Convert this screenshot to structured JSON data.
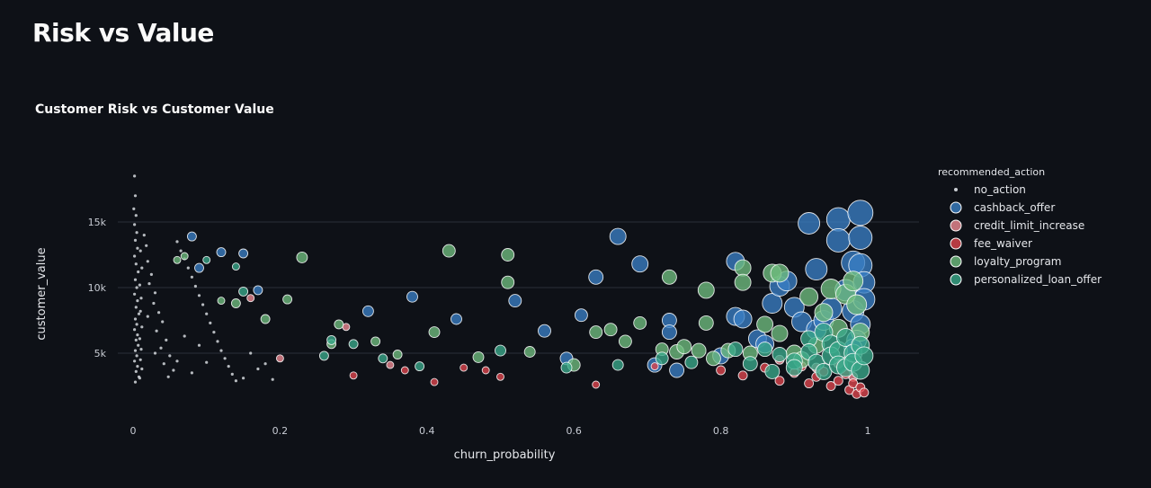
{
  "page": {
    "title": "Risk vs Value"
  },
  "chart_data": {
    "type": "scatter",
    "title": "Customer Risk vs Customer Value",
    "xlabel": "churn_probability",
    "ylabel": "customer_value",
    "xlim": [
      -0.02,
      1.02
    ],
    "ylim": [
      0,
      19000
    ],
    "x_ticks": [
      0,
      0.2,
      0.4,
      0.6,
      0.8,
      1
    ],
    "x_tick_labels": [
      "0",
      "0.2",
      "0.4",
      "0.6",
      "0.8",
      "1"
    ],
    "y_ticks": [
      5000,
      10000,
      15000
    ],
    "y_tick_labels": [
      "5k",
      "10k",
      "15k"
    ],
    "grid": true,
    "legend": {
      "title": "recommended_action",
      "position": "right"
    },
    "series": [
      {
        "name": "no_action",
        "color": "#c9cdd2",
        "points": [
          [
            0.002,
            18500
          ],
          [
            0.003,
            17000
          ],
          [
            0.001,
            16000
          ],
          [
            0.004,
            15500
          ],
          [
            0.002,
            14800
          ],
          [
            0.005,
            14200
          ],
          [
            0.003,
            13600
          ],
          [
            0.006,
            13000
          ],
          [
            0.002,
            12400
          ],
          [
            0.004,
            11800
          ],
          [
            0.007,
            11200
          ],
          [
            0.003,
            10600
          ],
          [
            0.005,
            10000
          ],
          [
            0.002,
            9500
          ],
          [
            0.006,
            9000
          ],
          [
            0.004,
            8500
          ],
          [
            0.008,
            8000
          ],
          [
            0.003,
            7600
          ],
          [
            0.005,
            7200
          ],
          [
            0.002,
            6800
          ],
          [
            0.006,
            6400
          ],
          [
            0.004,
            6000
          ],
          [
            0.007,
            5600
          ],
          [
            0.003,
            5200
          ],
          [
            0.005,
            4800
          ],
          [
            0.002,
            4400
          ],
          [
            0.006,
            4000
          ],
          [
            0.004,
            3600
          ],
          [
            0.008,
            3200
          ],
          [
            0.003,
            2800
          ],
          [
            0.01,
            12800
          ],
          [
            0.012,
            11500
          ],
          [
            0.009,
            10200
          ],
          [
            0.011,
            9200
          ],
          [
            0.01,
            8200
          ],
          [
            0.012,
            7000
          ],
          [
            0.009,
            6100
          ],
          [
            0.011,
            5300
          ],
          [
            0.01,
            4500
          ],
          [
            0.012,
            3800
          ],
          [
            0.009,
            3100
          ],
          [
            0.015,
            14000
          ],
          [
            0.018,
            13200
          ],
          [
            0.02,
            12000
          ],
          [
            0.025,
            11000
          ],
          [
            0.022,
            10300
          ],
          [
            0.03,
            9600
          ],
          [
            0.028,
            8800
          ],
          [
            0.035,
            8100
          ],
          [
            0.04,
            7400
          ],
          [
            0.032,
            6700
          ],
          [
            0.045,
            6000
          ],
          [
            0.038,
            5400
          ],
          [
            0.05,
            4800
          ],
          [
            0.042,
            4200
          ],
          [
            0.055,
            3700
          ],
          [
            0.048,
            3200
          ],
          [
            0.06,
            13500
          ],
          [
            0.065,
            12800
          ],
          [
            0.07,
            12200
          ],
          [
            0.075,
            11500
          ],
          [
            0.08,
            10800
          ],
          [
            0.085,
            10100
          ],
          [
            0.09,
            9400
          ],
          [
            0.095,
            8700
          ],
          [
            0.1,
            8000
          ],
          [
            0.105,
            7300
          ],
          [
            0.11,
            6600
          ],
          [
            0.115,
            5900
          ],
          [
            0.12,
            5200
          ],
          [
            0.125,
            4600
          ],
          [
            0.13,
            4000
          ],
          [
            0.135,
            3400
          ],
          [
            0.14,
            2900
          ],
          [
            0.02,
            7800
          ],
          [
            0.03,
            5000
          ],
          [
            0.06,
            4400
          ],
          [
            0.07,
            6300
          ],
          [
            0.08,
            3500
          ],
          [
            0.09,
            5600
          ],
          [
            0.1,
            4300
          ],
          [
            0.15,
            3100
          ],
          [
            0.16,
            5000
          ],
          [
            0.17,
            3800
          ],
          [
            0.18,
            4200
          ],
          [
            0.19,
            3000
          ]
        ]
      },
      {
        "name": "cashback_offer",
        "color": "#3a7fc4",
        "points": [
          [
            0.08,
            13900,
            5
          ],
          [
            0.09,
            11500,
            5
          ],
          [
            0.12,
            12700,
            5
          ],
          [
            0.15,
            12600,
            5
          ],
          [
            0.17,
            9800,
            5
          ],
          [
            0.32,
            8200,
            6
          ],
          [
            0.38,
            9300,
            6
          ],
          [
            0.44,
            7600,
            6
          ],
          [
            0.52,
            9000,
            7
          ],
          [
            0.56,
            6700,
            7
          ],
          [
            0.59,
            4600,
            7
          ],
          [
            0.61,
            7900,
            7
          ],
          [
            0.63,
            10800,
            8
          ],
          [
            0.66,
            13900,
            9
          ],
          [
            0.69,
            11800,
            9
          ],
          [
            0.71,
            4100,
            8
          ],
          [
            0.73,
            7500,
            8
          ],
          [
            0.73,
            6600,
            8
          ],
          [
            0.74,
            3700,
            8
          ],
          [
            0.8,
            4800,
            9
          ],
          [
            0.82,
            12000,
            10
          ],
          [
            0.82,
            7800,
            10
          ],
          [
            0.83,
            7600,
            10
          ],
          [
            0.85,
            6100,
            10
          ],
          [
            0.86,
            5700,
            10
          ],
          [
            0.87,
            8800,
            11
          ],
          [
            0.88,
            10100,
            11
          ],
          [
            0.89,
            10500,
            11
          ],
          [
            0.9,
            8500,
            11
          ],
          [
            0.91,
            7400,
            11
          ],
          [
            0.92,
            14900,
            12
          ],
          [
            0.93,
            11400,
            12
          ],
          [
            0.93,
            6800,
            11
          ],
          [
            0.94,
            7500,
            11
          ],
          [
            0.95,
            8400,
            12
          ],
          [
            0.96,
            15200,
            13
          ],
          [
            0.96,
            13600,
            13
          ],
          [
            0.97,
            9800,
            12
          ],
          [
            0.98,
            11900,
            13
          ],
          [
            0.98,
            8200,
            12
          ],
          [
            0.99,
            15700,
            14
          ],
          [
            0.99,
            13800,
            13
          ],
          [
            0.99,
            11700,
            13
          ],
          [
            0.995,
            10400,
            12
          ],
          [
            0.995,
            9100,
            12
          ],
          [
            0.99,
            7200,
            11
          ],
          [
            0.985,
            6000,
            11
          ],
          [
            0.98,
            5400,
            10
          ]
        ]
      },
      {
        "name": "credit_limit_increase",
        "color": "#f08c95",
        "points": [
          [
            0.16,
            9200,
            4
          ],
          [
            0.2,
            4600,
            4
          ],
          [
            0.29,
            7000,
            4
          ],
          [
            0.35,
            4100,
            4
          ],
          [
            0.88,
            4500,
            5
          ],
          [
            0.93,
            3900,
            5
          ],
          [
            0.96,
            4200,
            5
          ],
          [
            0.98,
            3200,
            5
          ]
        ]
      },
      {
        "name": "fee_waiver",
        "color": "#e0464e",
        "points": [
          [
            0.3,
            3300,
            4
          ],
          [
            0.37,
            3700,
            4
          ],
          [
            0.41,
            2800,
            4
          ],
          [
            0.45,
            3900,
            4
          ],
          [
            0.48,
            3700,
            4
          ],
          [
            0.5,
            3200,
            4
          ],
          [
            0.63,
            2600,
            4
          ],
          [
            0.71,
            4000,
            4
          ],
          [
            0.8,
            3700,
            5
          ],
          [
            0.83,
            3300,
            5
          ],
          [
            0.86,
            3900,
            5
          ],
          [
            0.88,
            2900,
            5
          ],
          [
            0.9,
            3500,
            5
          ],
          [
            0.91,
            4000,
            5
          ],
          [
            0.92,
            2700,
            5
          ],
          [
            0.93,
            3200,
            5
          ],
          [
            0.94,
            3600,
            5
          ],
          [
            0.95,
            2500,
            5
          ],
          [
            0.96,
            2900,
            5
          ],
          [
            0.97,
            3400,
            5
          ],
          [
            0.975,
            2200,
            5
          ],
          [
            0.98,
            2700,
            5
          ],
          [
            0.985,
            1900,
            5
          ],
          [
            0.99,
            2400,
            5
          ],
          [
            0.995,
            2000,
            5
          ]
        ]
      },
      {
        "name": "loyalty_program",
        "color": "#6fbe7f",
        "points": [
          [
            0.06,
            12100,
            4
          ],
          [
            0.07,
            12400,
            4
          ],
          [
            0.12,
            9000,
            4
          ],
          [
            0.14,
            8800,
            5
          ],
          [
            0.18,
            7600,
            5
          ],
          [
            0.21,
            9100,
            5
          ],
          [
            0.23,
            12300,
            6
          ],
          [
            0.27,
            5700,
            5
          ],
          [
            0.28,
            7200,
            5
          ],
          [
            0.33,
            5900,
            5
          ],
          [
            0.36,
            4900,
            5
          ],
          [
            0.41,
            6600,
            6
          ],
          [
            0.43,
            12800,
            7
          ],
          [
            0.47,
            4700,
            6
          ],
          [
            0.51,
            12500,
            7
          ],
          [
            0.51,
            10400,
            7
          ],
          [
            0.54,
            5100,
            6
          ],
          [
            0.6,
            4100,
            7
          ],
          [
            0.63,
            6600,
            7
          ],
          [
            0.65,
            6800,
            7
          ],
          [
            0.67,
            5900,
            7
          ],
          [
            0.69,
            7300,
            7
          ],
          [
            0.72,
            5300,
            7
          ],
          [
            0.73,
            10800,
            8
          ],
          [
            0.74,
            5100,
            8
          ],
          [
            0.75,
            5500,
            8
          ],
          [
            0.77,
            5200,
            8
          ],
          [
            0.78,
            9800,
            9
          ],
          [
            0.78,
            7300,
            8
          ],
          [
            0.79,
            4600,
            8
          ],
          [
            0.81,
            5200,
            8
          ],
          [
            0.83,
            11500,
            9
          ],
          [
            0.83,
            10400,
            9
          ],
          [
            0.84,
            5000,
            8
          ],
          [
            0.86,
            7200,
            9
          ],
          [
            0.87,
            11100,
            10
          ],
          [
            0.88,
            11100,
            10
          ],
          [
            0.88,
            6500,
            9
          ],
          [
            0.9,
            5000,
            9
          ],
          [
            0.91,
            4500,
            9
          ],
          [
            0.92,
            9300,
            10
          ],
          [
            0.93,
            5600,
            9
          ],
          [
            0.94,
            8100,
            10
          ],
          [
            0.95,
            9900,
            11
          ],
          [
            0.96,
            6900,
            10
          ],
          [
            0.97,
            9500,
            11
          ],
          [
            0.98,
            10500,
            11
          ],
          [
            0.985,
            8700,
            11
          ],
          [
            0.99,
            6600,
            10
          ]
        ]
      },
      {
        "name": "personalized_loan_offer",
        "color": "#3aa98a",
        "points": [
          [
            0.1,
            12100,
            4
          ],
          [
            0.14,
            11600,
            4
          ],
          [
            0.15,
            9700,
            5
          ],
          [
            0.26,
            4800,
            5
          ],
          [
            0.27,
            6000,
            5
          ],
          [
            0.3,
            5700,
            5
          ],
          [
            0.34,
            4600,
            5
          ],
          [
            0.39,
            4000,
            5
          ],
          [
            0.5,
            5200,
            6
          ],
          [
            0.59,
            3900,
            6
          ],
          [
            0.66,
            4100,
            6
          ],
          [
            0.72,
            4600,
            7
          ],
          [
            0.76,
            4300,
            7
          ],
          [
            0.82,
            5300,
            8
          ],
          [
            0.84,
            4200,
            8
          ],
          [
            0.86,
            5300,
            8
          ],
          [
            0.87,
            3600,
            8
          ],
          [
            0.88,
            4900,
            8
          ],
          [
            0.9,
            4400,
            9
          ],
          [
            0.9,
            3900,
            9
          ],
          [
            0.92,
            6100,
            9
          ],
          [
            0.92,
            5100,
            9
          ],
          [
            0.93,
            4300,
            9
          ],
          [
            0.94,
            6600,
            10
          ],
          [
            0.94,
            3600,
            9
          ],
          [
            0.95,
            5700,
            10
          ],
          [
            0.95,
            4800,
            10
          ],
          [
            0.96,
            5200,
            10
          ],
          [
            0.96,
            4100,
            10
          ],
          [
            0.97,
            6200,
            10
          ],
          [
            0.97,
            3900,
            10
          ],
          [
            0.98,
            5000,
            10
          ],
          [
            0.98,
            4300,
            10
          ],
          [
            0.99,
            5600,
            10
          ],
          [
            0.99,
            3700,
            10
          ],
          [
            0.995,
            4800,
            10
          ]
        ]
      }
    ]
  }
}
